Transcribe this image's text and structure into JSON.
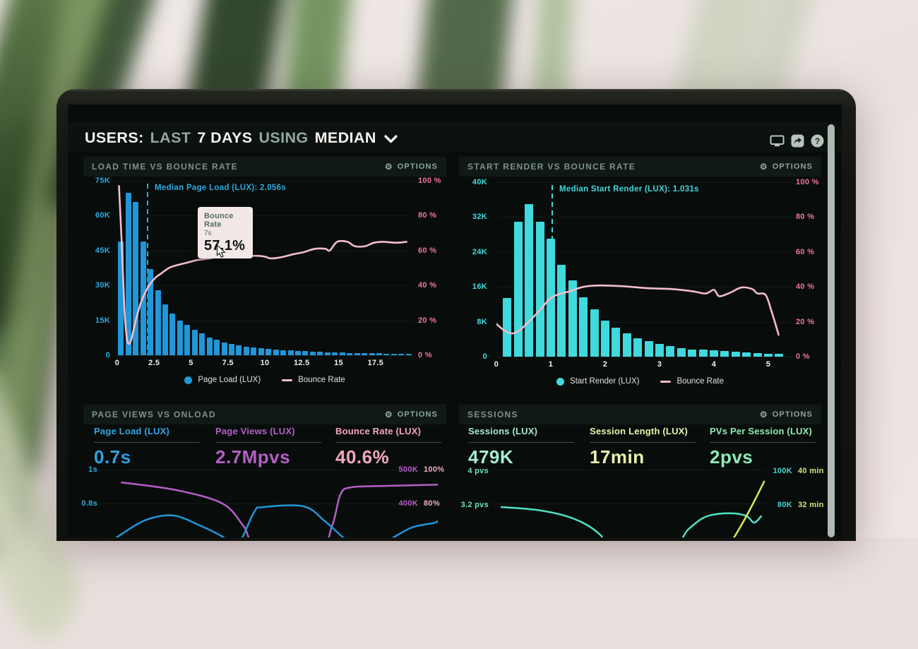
{
  "header": {
    "title": {
      "users": "USERS:",
      "last": "LAST",
      "days": "7 DAYS",
      "using": "USING",
      "median": "MEDIAN"
    },
    "icons": [
      "display-icon",
      "share-icon",
      "help-icon"
    ]
  },
  "panels": {
    "load_time": {
      "title": "LOAD TIME VS BOUNCE RATE",
      "options_label": "OPTIONS",
      "annotation": "Median Page Load (LUX): 2.056s",
      "tooltip": {
        "title": "Bounce Rate",
        "subtitle": "7s",
        "value": "57.1%"
      },
      "legend": [
        {
          "label": "Page Load (LUX)"
        },
        {
          "label": "Bounce Rate"
        }
      ]
    },
    "start_render": {
      "title": "START RENDER VS BOUNCE RATE",
      "options_label": "OPTIONS",
      "annotation": "Median Start Render (LUX): 1.031s",
      "legend": [
        {
          "label": "Start Render (LUX)"
        },
        {
          "label": "Bounce Rate"
        }
      ]
    },
    "page_views": {
      "title": "PAGE VIEWS VS ONLOAD",
      "options_label": "OPTIONS",
      "metrics": [
        {
          "label": "Page Load (LUX)",
          "value": "0.7s",
          "color": "#2fa3e2"
        },
        {
          "label": "Page Views (LUX)",
          "value": "2.7Mpvs",
          "color": "#b55ec6"
        },
        {
          "label": "Bounce Rate (LUX)",
          "value": "40.6%",
          "color": "#f4a6c0"
        }
      ]
    },
    "sessions": {
      "title": "SESSIONS",
      "options_label": "OPTIONS",
      "metrics": [
        {
          "label": "Sessions (LUX)",
          "value": "479K",
          "color": "#a5ead7"
        },
        {
          "label": "Session Length (LUX)",
          "value": "17min",
          "color": "#e9f2ad"
        },
        {
          "label": "PVs Per Session (LUX)",
          "value": "2pvs",
          "color": "#8feab4"
        }
      ]
    }
  },
  "chart_data": [
    {
      "id": "load-time-vs-bounce-rate",
      "type": "bar+line",
      "title": "LOAD TIME VS BOUNCE RATE",
      "bar_series": {
        "name": "Page Load (LUX)",
        "color": "#2196d8",
        "bucket_s": 0.5,
        "start_s": 0,
        "values": [
          49000,
          70000,
          66000,
          49000,
          37000,
          28000,
          22000,
          18000,
          15000,
          13000,
          11000,
          9500,
          7600,
          6600,
          5600,
          5000,
          4400,
          3800,
          3400,
          3000,
          2750,
          2450,
          2200,
          2000,
          1850,
          1700,
          1500,
          1400,
          1300,
          1200,
          1100,
          1000,
          950,
          900,
          850,
          800,
          750,
          700,
          650,
          550
        ]
      },
      "line_series": {
        "name": "Bounce Rate",
        "color": "#f3bdca",
        "points": [
          [
            0.12,
            97
          ],
          [
            0.3,
            65
          ],
          [
            0.5,
            25
          ],
          [
            0.65,
            10
          ],
          [
            0.78,
            6.5
          ],
          [
            0.95,
            9
          ],
          [
            1.15,
            16
          ],
          [
            1.35,
            23
          ],
          [
            1.6,
            30
          ],
          [
            1.9,
            36
          ],
          [
            2.25,
            41
          ],
          [
            2.6,
            44.5
          ],
          [
            3.0,
            47
          ],
          [
            3.5,
            50
          ],
          [
            4.0,
            51.5
          ],
          [
            4.7,
            53
          ],
          [
            5.4,
            54.5
          ],
          [
            6.3,
            55.5
          ],
          [
            7.0,
            57.1
          ],
          [
            7.6,
            56.5
          ],
          [
            8.4,
            56.5
          ],
          [
            9.4,
            57
          ],
          [
            10.0,
            56.5
          ],
          [
            10.4,
            55.5
          ],
          [
            11.0,
            56
          ],
          [
            12.0,
            58
          ],
          [
            12.6,
            59
          ],
          [
            13.4,
            61
          ],
          [
            14.1,
            61
          ],
          [
            14.4,
            60
          ],
          [
            14.9,
            65
          ],
          [
            15.6,
            65
          ],
          [
            16.1,
            62.5
          ],
          [
            16.8,
            62.5
          ],
          [
            17.4,
            64.5
          ],
          [
            18.0,
            65
          ],
          [
            18.9,
            64.5
          ],
          [
            19.6,
            65
          ]
        ]
      },
      "y_left": {
        "max": 75000,
        "ticks": [
          "75K",
          "60K",
          "45K",
          "30K",
          "15K",
          "0"
        ],
        "color": "#2fa9e1"
      },
      "y_right": {
        "max": 100,
        "ticks": [
          "100 %",
          "80 %",
          "60 %",
          "40 %",
          "20 %",
          "0 %"
        ],
        "color": "#f2739f"
      },
      "x_axis": {
        "max": 20,
        "tick_values": [
          0,
          2.5,
          5,
          7.5,
          10,
          12.5,
          15,
          17.5
        ],
        "labels": [
          "0",
          "2.5",
          "5",
          "7.5",
          "10",
          "12.5",
          "15",
          "17.5"
        ],
        "color": "#eef1ef"
      },
      "annotation": {
        "text": "Median Page Load (LUX): 2.056s",
        "x_s": 2.056,
        "color": "#2fa9e1"
      },
      "tooltip": {
        "series": "Bounce Rate",
        "x": "7s",
        "value": "57.1%"
      }
    },
    {
      "id": "start-render-vs-bounce-rate",
      "type": "bar+line",
      "title": "START RENDER VS BOUNCE RATE",
      "bar_series": {
        "name": "Start Render (LUX)",
        "color": "#3fd9de",
        "bucket_s": 0.2,
        "start_s": 0.2,
        "values": [
          13500,
          31000,
          35000,
          31000,
          27000,
          21000,
          17500,
          13600,
          10800,
          8200,
          6600,
          5300,
          4200,
          3500,
          3000,
          2400,
          2000,
          1700,
          1600,
          1400,
          1250,
          1100,
          900,
          800,
          700,
          600
        ]
      },
      "line_series": {
        "name": "Bounce Rate",
        "color": "#f3bdca",
        "points": [
          [
            0,
            18.7
          ],
          [
            0.2,
            14
          ],
          [
            0.4,
            14.5
          ],
          [
            0.75,
            25
          ],
          [
            1.02,
            34
          ],
          [
            1.35,
            37.5
          ],
          [
            1.6,
            40
          ],
          [
            1.9,
            40.8
          ],
          [
            2.3,
            40.4
          ],
          [
            2.8,
            39.2
          ],
          [
            3.2,
            38.8
          ],
          [
            3.6,
            37.5
          ],
          [
            3.85,
            36.2
          ],
          [
            4.0,
            38.3
          ],
          [
            4.1,
            34.6
          ],
          [
            4.3,
            36.7
          ],
          [
            4.5,
            39.6
          ],
          [
            4.7,
            38.8
          ],
          [
            4.8,
            36.2
          ],
          [
            4.95,
            35.4
          ],
          [
            5.06,
            26
          ],
          [
            5.19,
            12.5
          ]
        ]
      },
      "y_left": {
        "max": 40000,
        "ticks": [
          "40K",
          "32K",
          "24K",
          "16K",
          "8K",
          "0"
        ],
        "color": "#43dce2"
      },
      "y_right": {
        "max": 100,
        "ticks": [
          "100 %",
          "80 %",
          "60 %",
          "40 %",
          "20 %",
          "0 %"
        ],
        "color": "#f2739f"
      },
      "x_axis": {
        "max": 5.45,
        "tick_values": [
          0,
          1,
          2,
          3,
          4,
          5
        ],
        "labels": [
          "0",
          "1",
          "2",
          "3",
          "4",
          "5"
        ],
        "color": "#eef1ef"
      },
      "annotation": {
        "text": "Median Start Render (LUX): 1.031s",
        "x_s": 1.031,
        "color": "#41d6dc"
      }
    },
    {
      "id": "page-views-vs-onload",
      "type": "line",
      "partial": true,
      "y_left": {
        "ticks": [
          "1s",
          "0.8s"
        ],
        "color": "#2fa9e1"
      },
      "y_right_outer": {
        "ticks": [
          "500K",
          "400K"
        ],
        "color": "#b55ec6"
      },
      "y_right_inner": {
        "ticks": [
          "100%",
          "80%"
        ],
        "color": "#f4a6c0"
      },
      "series": [
        {
          "name": "Page Views (LUX)",
          "color": "#b55ec6",
          "points_norm": [
            [
              0.067,
              0.3
            ],
            [
              0.229,
              0.393
            ],
            [
              0.365,
              0.556
            ],
            [
              0.427,
              0.829
            ],
            [
              0.469,
              1.06
            ],
            [
              0.646,
              1.1
            ],
            [
              0.688,
              0.829
            ],
            [
              0.713,
              0.444
            ],
            [
              0.746,
              0.359
            ],
            [
              0.85,
              0.342
            ],
            [
              1.0,
              0.327
            ]
          ]
        },
        {
          "name": "Page Load (LUX)",
          "color": "#2196d8",
          "points_norm": [
            [
              0.052,
              0.966
            ],
            [
              0.135,
              0.761
            ],
            [
              0.219,
              0.7
            ],
            [
              0.302,
              0.829
            ],
            [
              0.365,
              0.957
            ],
            [
              0.406,
              1.08
            ],
            [
              0.458,
              0.66
            ],
            [
              0.483,
              0.6
            ],
            [
              0.604,
              0.59
            ],
            [
              0.667,
              0.77
            ],
            [
              0.719,
              0.96
            ],
            [
              0.76,
              1.08
            ],
            [
              0.833,
              1.04
            ],
            [
              0.921,
              0.85
            ],
            [
              0.99,
              0.79
            ],
            [
              1.0,
              0.76
            ]
          ]
        }
      ]
    },
    {
      "id": "sessions",
      "type": "line",
      "partial": true,
      "y_left": {
        "ticks": [
          "4 pvs",
          "3.2 pvs"
        ],
        "color": "#6fe5b4"
      },
      "y_right_outer": {
        "ticks": [
          "100K",
          "80K"
        ],
        "color": "#3fd8d4"
      },
      "y_right_inner": {
        "ticks": [
          "40 min",
          "32 min"
        ],
        "color": "#cde87c"
      },
      "series": [
        {
          "name": "PVs Per Session (LUX)",
          "color": "#4fe0c4",
          "points_norm": [
            [
              0.041,
              0.598
            ],
            [
              0.164,
              0.632
            ],
            [
              0.267,
              0.7
            ],
            [
              0.344,
              0.803
            ],
            [
              0.4,
              0.94
            ],
            [
              0.433,
              1.08
            ],
            [
              0.651,
              1.08
            ],
            [
              0.715,
              0.872
            ],
            [
              0.767,
              0.735
            ],
            [
              0.818,
              0.684
            ],
            [
              0.882,
              0.675
            ],
            [
              0.928,
              0.71
            ],
            [
              0.954,
              0.787
            ],
            [
              0.979,
              0.71
            ]
          ]
        },
        {
          "name": "Session Length (LUX)",
          "color": "#d8e855",
          "points_norm": [
            [
              0.861,
              1.08
            ],
            [
              0.913,
              0.787
            ],
            [
              0.954,
              0.53
            ],
            [
              0.99,
              0.29
            ]
          ]
        }
      ]
    }
  ]
}
